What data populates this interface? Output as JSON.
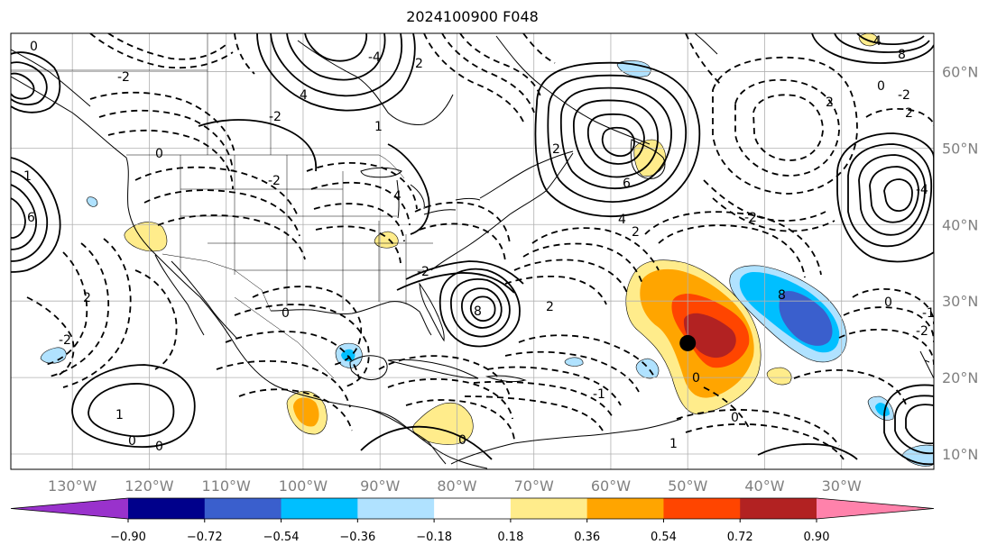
{
  "title": "2024100900 F048",
  "map": {
    "projection": "PlateCarree",
    "lon_range": [
      -138,
      -18
    ],
    "lat_range": [
      8,
      65
    ],
    "gridlines": true,
    "lon_ticks": [
      "130°W",
      "120°W",
      "110°W",
      "100°W",
      "90°W",
      "80°W",
      "70°W",
      "60°W",
      "50°W",
      "40°W",
      "30°W"
    ],
    "lat_ticks": [
      "10°N",
      "20°N",
      "30°N",
      "40°N",
      "50°N",
      "60°N"
    ],
    "marker": {
      "lon": -50,
      "lat": 24.5,
      "symbol": "black-dot"
    },
    "contour_labels": [
      "0",
      "-2",
      "2",
      "4",
      "-1",
      "1",
      "3",
      "-3",
      "-4",
      "6",
      "8"
    ]
  },
  "colorbar": {
    "extend": "both",
    "ticks": [
      "−0.90",
      "−0.72",
      "−0.54",
      "−0.36",
      "−0.18",
      "0.18",
      "0.36",
      "0.54",
      "0.72",
      "0.90"
    ],
    "colors": [
      "#9932cc",
      "#00008b",
      "#3a5fcd",
      "#00bfff",
      "#b0e2ff",
      "#ffffff",
      "#ffec8b",
      "#ffa500",
      "#ff4500",
      "#b22222",
      "#ff82ab"
    ]
  }
}
